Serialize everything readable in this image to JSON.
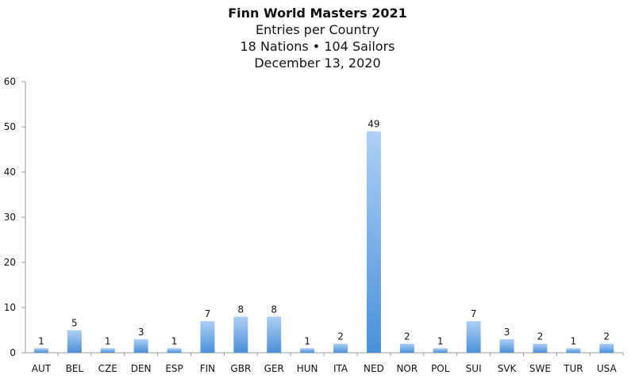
{
  "chart_data": {
    "type": "bar",
    "title": "Finn World Masters 2021",
    "subtitle": [
      "Entries per Country",
      "18 Nations • 104 Sailors",
      "December 13, 2020"
    ],
    "xlabel": "",
    "ylabel": "",
    "categories": [
      "AUT",
      "BEL",
      "CZE",
      "DEN",
      "ESP",
      "FIN",
      "GBR",
      "GER",
      "HUN",
      "ITA",
      "NED",
      "NOR",
      "POL",
      "SUI",
      "SVK",
      "SWE",
      "TUR",
      "USA"
    ],
    "values": [
      1,
      5,
      1,
      3,
      1,
      7,
      8,
      8,
      1,
      2,
      49,
      2,
      1,
      7,
      3,
      2,
      1,
      2
    ],
    "ylim": [
      0,
      60
    ],
    "yticks": [
      0,
      10,
      20,
      30,
      40,
      50,
      60
    ],
    "grid": false,
    "data_labels": true,
    "legend": "none",
    "colors": {
      "bar_top": "#aed0f5",
      "bar_bottom": "#4a90d9",
      "axis": "#999999"
    }
  }
}
